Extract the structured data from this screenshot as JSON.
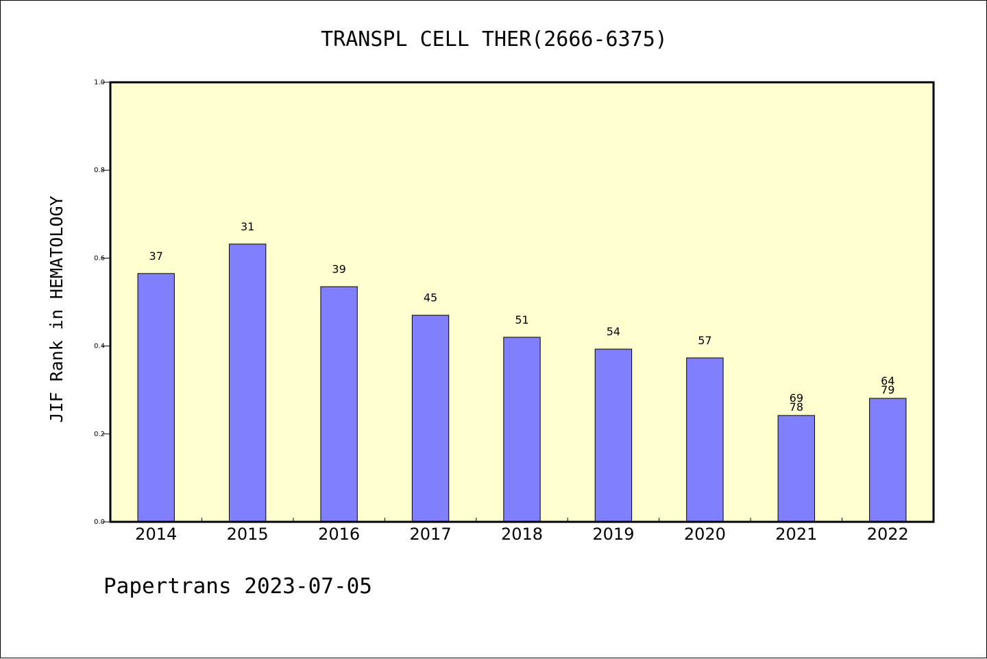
{
  "chart_data": {
    "type": "bar",
    "title": "TRANSPL CELL THER(2666-6375)",
    "ylabel": "JIF Rank in HEMATOLOGY",
    "xlabel": "",
    "categories": [
      "2014",
      "2015",
      "2016",
      "2017",
      "2018",
      "2019",
      "2020",
      "2021",
      "2022"
    ],
    "values": [
      0.565,
      0.632,
      0.535,
      0.47,
      0.42,
      0.393,
      0.373,
      0.242,
      0.281
    ],
    "bar_labels": [
      [
        "37"
      ],
      [
        "31"
      ],
      [
        "39"
      ],
      [
        "45"
      ],
      [
        "51"
      ],
      [
        "54"
      ],
      [
        "57"
      ],
      [
        "69",
        "78"
      ],
      [
        "64",
        "79"
      ]
    ],
    "ylim": [
      0,
      1.0
    ],
    "yticks": [
      "0.0",
      "0.2",
      "0.4",
      "0.6",
      "0.8",
      "1.0"
    ],
    "grid": false,
    "colors": {
      "bar": "#8080ff",
      "plot_background": "#ffffd0",
      "edge": "#000000"
    }
  },
  "footer": {
    "text": "Papertrans 2023-07-05"
  }
}
